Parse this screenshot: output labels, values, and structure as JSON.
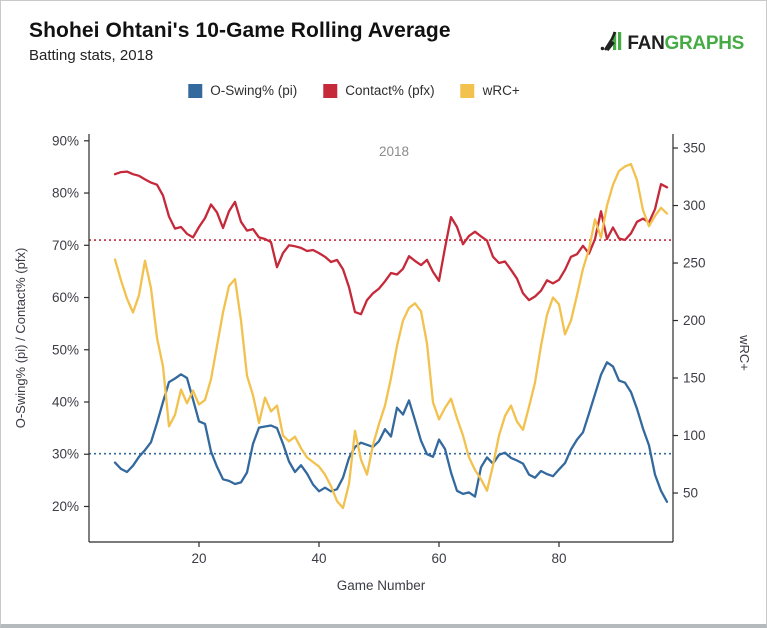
{
  "header": {
    "title": "Shohei Ohtani's 10-Game Rolling Average",
    "subtitle": "Batting stats, 2018"
  },
  "logo": {
    "fan": "FAN",
    "graphs": "GRAPHS",
    "green": "#45ab45",
    "dark": "#1f1f1f"
  },
  "legend": {
    "items": [
      {
        "label": "O-Swing% (pi)",
        "color": "#34699e"
      },
      {
        "label": "Contact% (pfx)",
        "color": "#c5293a"
      },
      {
        "label": "wRC+",
        "color": "#f2c14e"
      }
    ]
  },
  "chart_data": {
    "type": "line",
    "annotation": "2018",
    "xlabel": "Game Number",
    "ylabel_left": "O-Swing% (pi) / Contact% (pfx)",
    "ylabel_right": "wRC+",
    "x_domain": [
      1.67,
      99
    ],
    "x_ticks": [
      20,
      40,
      60,
      80
    ],
    "first_game": 6,
    "left_axis": {
      "domain": [
        13.2,
        91.3
      ],
      "tick_values": [
        20,
        30,
        40,
        50,
        60,
        70,
        80,
        90
      ],
      "tick_labels": [
        "20%",
        "30%",
        "40%",
        "50%",
        "60%",
        "70%",
        "80%",
        "90%"
      ]
    },
    "right_axis": {
      "domain": [
        7.4,
        362.2
      ],
      "tick_values": [
        50,
        100,
        150,
        200,
        250,
        300,
        350
      ],
      "tick_labels": [
        "50",
        "100",
        "150",
        "200",
        "250",
        "300",
        "350"
      ]
    },
    "reference_lines": [
      {
        "label": "Contact% season average",
        "slug": "contact-avg",
        "axis": "left",
        "value": 71,
        "color": "#c5293a"
      },
      {
        "label": "O-Swing% season average",
        "slug": "o-swing-avg",
        "axis": "left",
        "value": 30.1,
        "color": "#34699e"
      }
    ],
    "series": [
      {
        "name": "O-Swing% (pi)",
        "slug": "o-swing",
        "axis": "left",
        "color": "#34699e",
        "values": [
          28.4,
          27.2,
          26.6,
          27.8,
          29.5,
          30.8,
          32.3,
          36,
          40,
          43.8,
          44.5,
          45.3,
          44.6,
          40.5,
          36.3,
          35.8,
          30.5,
          27.6,
          25.2,
          24.9,
          24.3,
          24.6,
          26.5,
          32,
          35.1,
          35.3,
          35.5,
          35,
          32,
          28.6,
          26.6,
          27.9,
          26.3,
          24.2,
          22.9,
          23.6,
          22.9,
          23.3,
          25.5,
          29.3,
          31.4,
          32.2,
          31.8,
          31.4,
          32.5,
          34.8,
          33.4,
          38.9,
          37.6,
          40.3,
          36.5,
          32.6,
          30,
          29.5,
          32.8,
          31,
          26.5,
          23,
          22.4,
          22.7,
          21.9,
          27.5,
          29.4,
          28.2,
          29.9,
          30.3,
          29.3,
          28.8,
          28.2,
          26.1,
          25.5,
          26.8,
          26.2,
          25.8,
          27.1,
          28.3,
          30.9,
          32.8,
          34.2,
          37.8,
          41.5,
          45.2,
          47.6,
          46.8,
          44.1,
          43.7,
          41.9,
          38.7,
          34.9,
          31.7,
          26.1,
          23,
          20.9
        ]
      },
      {
        "name": "Contact% (pfx)",
        "slug": "contact",
        "axis": "left",
        "color": "#c5293a",
        "values": [
          83.6,
          84,
          84.1,
          83.6,
          83.3,
          82.6,
          82,
          81.6,
          79.5,
          75.5,
          73.2,
          73.5,
          72.2,
          71.5,
          73.5,
          75.2,
          77.8,
          76.3,
          73.3,
          76.5,
          78.3,
          74.5,
          72.8,
          73.1,
          71.5,
          71.2,
          70.6,
          65.8,
          68.5,
          70,
          69.8,
          69.5,
          68.9,
          69.1,
          68.5,
          67.8,
          66.8,
          67.2,
          65.4,
          62,
          57.2,
          56.8,
          59.5,
          60.8,
          61.7,
          63.1,
          64.7,
          64.4,
          65.5,
          67.9,
          67,
          66.2,
          67.2,
          64.9,
          63.2,
          69.5,
          75.4,
          73.5,
          70.2,
          71.8,
          72.6,
          71.7,
          70.9,
          67.8,
          66.6,
          66.9,
          65.3,
          63.6,
          60.8,
          59.5,
          60.2,
          61.3,
          63.3,
          62.7,
          63.4,
          65.3,
          67.8,
          68.3,
          69.9,
          68.4,
          71.2,
          76.5,
          71.2,
          73.4,
          71.3,
          71,
          72.3,
          74.5,
          75.1,
          74.4,
          76.9,
          81.7,
          81.1
        ]
      },
      {
        "name": "wRC+",
        "slug": "wrc",
        "axis": "right",
        "color": "#f2c14e",
        "values": [
          253,
          235,
          219,
          207,
          222,
          252,
          228,
          185,
          160,
          108,
          118,
          140,
          128,
          139,
          127,
          131,
          149,
          178,
          207,
          230,
          236,
          200,
          152,
          135,
          111,
          133,
          121,
          126,
          100,
          95,
          99,
          89,
          81,
          77,
          73,
          66,
          56,
          43,
          37,
          58,
          104,
          79,
          66,
          92,
          110,
          126,
          150,
          178,
          200,
          211,
          215,
          208,
          180,
          129,
          114,
          124,
          132,
          115,
          100,
          81,
          70,
          62,
          52,
          74,
          100,
          117,
          126,
          112,
          105,
          125,
          146,
          178,
          205,
          220,
          214,
          188,
          200,
          222,
          245,
          262,
          288,
          272,
          300,
          318,
          330,
          334,
          336,
          322,
          296,
          282,
          291,
          298,
          293
        ]
      }
    ]
  }
}
